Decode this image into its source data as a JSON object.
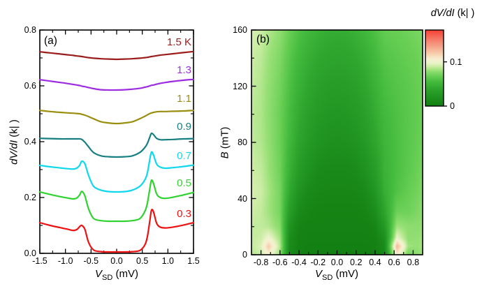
{
  "chart_data": [
    {
      "type": "line",
      "panel_label": "(a)",
      "xlabel_var": "V",
      "xlabel_sub": "SD",
      "xlabel_unit": " (mV)",
      "ylabel_italic": "dV/dI",
      "ylabel_unit": " (k| )",
      "xlim": [
        -1.5,
        1.5
      ],
      "ylim": [
        0,
        0.8
      ],
      "xticks": {
        "major": [
          -1.5,
          -1.0,
          -0.5,
          0.0,
          0.5,
          1.0,
          1.5
        ],
        "labels": [
          "-1.5",
          "-1.0",
          "-0.5",
          "0.0",
          "0.5",
          "1.0",
          "1.5"
        ],
        "minor": [
          -1.25,
          -0.75,
          -0.25,
          0.25,
          0.75,
          1.25
        ]
      },
      "yticks": {
        "major": [
          0,
          0.2,
          0.4,
          0.6,
          0.8
        ],
        "labels": [
          "0.0",
          "0.2",
          "0.4",
          "0.6",
          "0.8"
        ],
        "minor": [
          0.1,
          0.3,
          0.5,
          0.7
        ]
      },
      "x": [
        -1.5,
        -1.3,
        -1.1,
        -0.95,
        -0.85,
        -0.78,
        -0.72,
        -0.68,
        -0.62,
        -0.55,
        -0.45,
        -0.3,
        -0.15,
        0,
        0.15,
        0.3,
        0.45,
        0.55,
        0.6,
        0.65,
        0.68,
        0.72,
        0.78,
        0.85,
        0.95,
        1.1,
        1.3,
        1.5
      ],
      "series": [
        {
          "name": "1.5 K",
          "label": "1.5 K",
          "color": "#9c1b1b",
          "label_v": 0.7525,
          "values": [
            0.722,
            0.718,
            0.714,
            0.711,
            0.709,
            0.707,
            0.706,
            0.705,
            0.703,
            0.701,
            0.699,
            0.697,
            0.696,
            0.695,
            0.696,
            0.697,
            0.699,
            0.701,
            0.702,
            0.704,
            0.705,
            0.706,
            0.708,
            0.71,
            0.712,
            0.715,
            0.719,
            0.723
          ]
        },
        {
          "name": "1.3 K",
          "label": "1.3",
          "color": "#9d2be2",
          "label_v": 0.6525,
          "values": [
            0.622,
            0.617,
            0.612,
            0.608,
            0.605,
            0.603,
            0.601,
            0.599,
            0.597,
            0.594,
            0.59,
            0.586,
            0.585,
            0.585,
            0.586,
            0.588,
            0.591,
            0.595,
            0.597,
            0.6,
            0.602,
            0.603,
            0.606,
            0.609,
            0.612,
            0.616,
            0.62,
            0.623
          ]
        },
        {
          "name": "1.1 K",
          "label": "1.1",
          "color": "#9a8e0e",
          "label_v": 0.55,
          "values": [
            0.512,
            0.508,
            0.505,
            0.503,
            0.502,
            0.501,
            0.5,
            0.498,
            0.495,
            0.49,
            0.482,
            0.471,
            0.467,
            0.465,
            0.467,
            0.471,
            0.482,
            0.491,
            0.496,
            0.501,
            0.503,
            0.505,
            0.507,
            0.508,
            0.508,
            0.509,
            0.51,
            0.512
          ]
        },
        {
          "name": "0.9 K",
          "label": "0.9",
          "color": "#157f82",
          "label_v": 0.45,
          "values": [
            0.412,
            0.411,
            0.41,
            0.41,
            0.41,
            0.41,
            0.41,
            0.408,
            0.398,
            0.382,
            0.361,
            0.349,
            0.346,
            0.345,
            0.346,
            0.349,
            0.361,
            0.379,
            0.394,
            0.418,
            0.43,
            0.425,
            0.412,
            0.407,
            0.407,
            0.408,
            0.41,
            0.411
          ]
        },
        {
          "name": "0.7 K",
          "label": "0.7",
          "color": "#0fd8ee",
          "label_v": 0.345,
          "values": [
            0.315,
            0.31,
            0.306,
            0.303,
            0.302,
            0.305,
            0.316,
            0.33,
            0.321,
            0.28,
            0.24,
            0.226,
            0.221,
            0.22,
            0.221,
            0.226,
            0.24,
            0.263,
            0.288,
            0.34,
            0.363,
            0.352,
            0.32,
            0.309,
            0.305,
            0.307,
            0.311,
            0.316
          ]
        },
        {
          "name": "0.5 K",
          "label": "0.5",
          "color": "#2fd32f",
          "label_v": 0.2475,
          "values": [
            0.22,
            0.211,
            0.203,
            0.198,
            0.195,
            0.198,
            0.21,
            0.222,
            0.206,
            0.16,
            0.125,
            0.117,
            0.115,
            0.115,
            0.115,
            0.117,
            0.124,
            0.15,
            0.18,
            0.235,
            0.262,
            0.25,
            0.213,
            0.2,
            0.197,
            0.201,
            0.209,
            0.218
          ]
        },
        {
          "name": "0.3 K",
          "label": "0.3",
          "color": "#ee1111",
          "label_v": 0.1375,
          "values": [
            0.11,
            0.1,
            0.092,
            0.086,
            0.082,
            0.085,
            0.096,
            0.1,
            0.086,
            0.04,
            0.012,
            0.006,
            0.005,
            0.005,
            0.005,
            0.006,
            0.01,
            0.03,
            0.06,
            0.12,
            0.155,
            0.148,
            0.108,
            0.094,
            0.091,
            0.094,
            0.101,
            0.11
          ]
        }
      ]
    },
    {
      "type": "heatmap",
      "panel_label": "(b)",
      "xlabel_var": "V",
      "xlabel_sub": "SD",
      "xlabel_unit": " (mV)",
      "ylabel_var": "B",
      "ylabel_unit": " (mT)",
      "xlim": [
        -0.9,
        0.9
      ],
      "ylim": [
        0,
        160
      ],
      "xticks": {
        "major": [
          -0.8,
          -0.6,
          -0.4,
          -0.2,
          0.0,
          0.2,
          0.4,
          0.6,
          0.8
        ],
        "labels": [
          "-0.8",
          "-0.6",
          "-0.4",
          "-0.2",
          "0.0",
          "0.2",
          "0.4",
          "0.6",
          "0.8"
        ],
        "minor": [
          -0.7,
          -0.5,
          -0.3,
          -0.1,
          0.1,
          0.3,
          0.5,
          0.7
        ]
      },
      "yticks": {
        "major": [
          0,
          40,
          80,
          120,
          160
        ],
        "labels": [
          "0",
          "40",
          "80",
          "120",
          "160"
        ],
        "minor": [
          20,
          60,
          100,
          140
        ]
      },
      "x": [
        -0.9,
        -0.8,
        -0.72,
        -0.6,
        -0.5,
        -0.4,
        -0.3,
        -0.2,
        -0.1,
        0,
        0.1,
        0.2,
        0.3,
        0.4,
        0.5,
        0.63,
        0.75,
        0.85,
        0.9
      ],
      "b": [
        0,
        6,
        12,
        20,
        30,
        45,
        60,
        80,
        100,
        120,
        140,
        160
      ],
      "values": [
        [
          0.085,
          0.09,
          0.104,
          0.08,
          0.012,
          0.003,
          0.002,
          0.002,
          0.002,
          0.002,
          0.002,
          0.002,
          0.002,
          0.003,
          0.012,
          0.108,
          0.07,
          0.078,
          0.082
        ],
        [
          0.088,
          0.094,
          0.12,
          0.086,
          0.014,
          0.003,
          0.002,
          0.002,
          0.002,
          0.002,
          0.002,
          0.002,
          0.002,
          0.003,
          0.014,
          0.128,
          0.082,
          0.08,
          0.083
        ],
        [
          0.088,
          0.09,
          0.1,
          0.082,
          0.016,
          0.004,
          0.003,
          0.003,
          0.003,
          0.003,
          0.003,
          0.003,
          0.003,
          0.004,
          0.018,
          0.098,
          0.078,
          0.079,
          0.082
        ],
        [
          0.088,
          0.088,
          0.086,
          0.076,
          0.022,
          0.006,
          0.004,
          0.004,
          0.004,
          0.004,
          0.004,
          0.004,
          0.004,
          0.008,
          0.028,
          0.082,
          0.078,
          0.077,
          0.08
        ],
        [
          0.09,
          0.088,
          0.082,
          0.072,
          0.032,
          0.012,
          0.007,
          0.005,
          0.005,
          0.005,
          0.005,
          0.005,
          0.007,
          0.015,
          0.038,
          0.07,
          0.07,
          0.074,
          0.078
        ],
        [
          0.092,
          0.09,
          0.083,
          0.072,
          0.042,
          0.022,
          0.013,
          0.009,
          0.008,
          0.008,
          0.008,
          0.009,
          0.013,
          0.024,
          0.046,
          0.06,
          0.067,
          0.071,
          0.075
        ],
        [
          0.09,
          0.088,
          0.081,
          0.07,
          0.048,
          0.03,
          0.02,
          0.014,
          0.012,
          0.012,
          0.012,
          0.014,
          0.02,
          0.031,
          0.049,
          0.058,
          0.064,
          0.069,
          0.072
        ],
        [
          0.088,
          0.085,
          0.079,
          0.069,
          0.053,
          0.038,
          0.028,
          0.022,
          0.019,
          0.018,
          0.019,
          0.022,
          0.028,
          0.039,
          0.051,
          0.058,
          0.063,
          0.067,
          0.07
        ],
        [
          0.087,
          0.084,
          0.078,
          0.069,
          0.056,
          0.043,
          0.034,
          0.028,
          0.025,
          0.024,
          0.025,
          0.028,
          0.034,
          0.044,
          0.054,
          0.059,
          0.063,
          0.066,
          0.069
        ],
        [
          0.088,
          0.085,
          0.079,
          0.071,
          0.059,
          0.048,
          0.04,
          0.034,
          0.031,
          0.03,
          0.031,
          0.034,
          0.04,
          0.049,
          0.057,
          0.061,
          0.064,
          0.067,
          0.07
        ],
        [
          0.09,
          0.087,
          0.081,
          0.074,
          0.063,
          0.053,
          0.046,
          0.041,
          0.038,
          0.037,
          0.038,
          0.041,
          0.046,
          0.054,
          0.061,
          0.064,
          0.067,
          0.069,
          0.072
        ],
        [
          0.092,
          0.09,
          0.085,
          0.078,
          0.068,
          0.059,
          0.053,
          0.048,
          0.045,
          0.044,
          0.045,
          0.048,
          0.053,
          0.059,
          0.066,
          0.068,
          0.07,
          0.072,
          0.075
        ]
      ],
      "colormap": [
        [
          0.0,
          "#117e11"
        ],
        [
          0.02,
          "#1f921f"
        ],
        [
          0.04,
          "#2fa72f"
        ],
        [
          0.055,
          "#44bb3e"
        ],
        [
          0.068,
          "#68cf54"
        ],
        [
          0.08,
          "#97e076"
        ],
        [
          0.09,
          "#cdeda6"
        ],
        [
          0.098,
          "#ecf4cb"
        ],
        [
          0.106,
          "#f7f0d2"
        ],
        [
          0.118,
          "#f7d0ae"
        ],
        [
          0.135,
          "#f5a289"
        ],
        [
          0.155,
          "#f66f5e"
        ],
        [
          0.172,
          "#f63f34"
        ]
      ],
      "colorbar": {
        "title_italic": "dV/dI",
        "title_unit": " (k| )",
        "vmin": 0,
        "vmax": 0.172,
        "ticks": [
          {
            "v": 0.1,
            "label": "0.1"
          },
          {
            "v": 0,
            "label": "0"
          }
        ]
      }
    }
  ]
}
